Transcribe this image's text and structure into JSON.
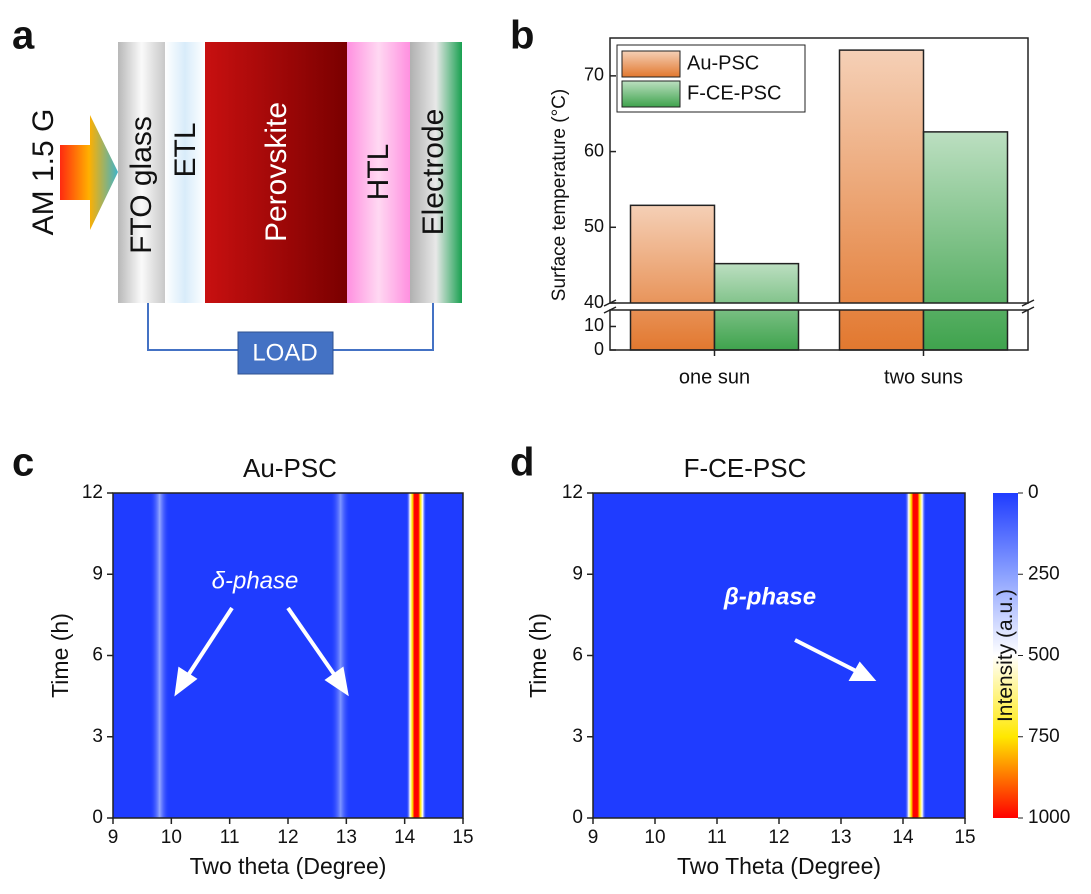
{
  "panel_labels": [
    "a",
    "b",
    "c",
    "d"
  ],
  "diagram": {
    "light": "AM 1.5 G",
    "layers": [
      "FTO glass",
      "ETL",
      "Perovskite",
      "HTL",
      "Electrode"
    ],
    "load": "LOAD"
  },
  "chart_data": [
    {
      "type": "bar",
      "ylabel": "Surface temperature (°C)",
      "categories": [
        "one sun",
        "two suns"
      ],
      "series": [
        {
          "name": "Au-PSC",
          "color": "#e2782f",
          "values": [
            52.9,
            73.4
          ]
        },
        {
          "name": "F-CE-PSC",
          "color": "#3fa34d",
          "values": [
            45.2,
            62.6
          ]
        }
      ],
      "ylim": [
        0,
        75
      ],
      "ybreak": [
        17,
        40
      ],
      "yticks": [
        0,
        10,
        40,
        50,
        60,
        70
      ],
      "legend": "upper left"
    },
    {
      "type": "heatmap",
      "title": "Au-PSC",
      "xlabel": "Two theta (Degree)",
      "ylabel": "Time (h)",
      "xlim": [
        9,
        15
      ],
      "xticks": [
        9,
        10,
        11,
        12,
        13,
        14,
        15
      ],
      "ylim": [
        0,
        12
      ],
      "yticks": [
        0,
        3,
        6,
        9,
        12
      ],
      "annotation": "δ-phase",
      "peaks": {
        "x": [
          9.8,
          12.9,
          14.2
        ],
        "values": [
          300,
          250,
          1000
        ]
      }
    },
    {
      "type": "heatmap",
      "title": "F-CE-PSC",
      "xlabel": "Two Theta (Degree)",
      "ylabel": "Time (h)",
      "xlim": [
        9,
        15
      ],
      "xticks": [
        9,
        10,
        11,
        12,
        13,
        14,
        15
      ],
      "ylim": [
        0,
        12
      ],
      "yticks": [
        0,
        3,
        6,
        9,
        12
      ],
      "annotation": "β-phase",
      "peaks": {
        "x": [
          14.2
        ],
        "values": [
          1000
        ]
      },
      "colorbar": {
        "label": "Intensity (a.u.)",
        "lim": [
          0,
          1000
        ],
        "ticks": [
          0,
          250,
          500,
          750,
          1000
        ]
      }
    }
  ]
}
